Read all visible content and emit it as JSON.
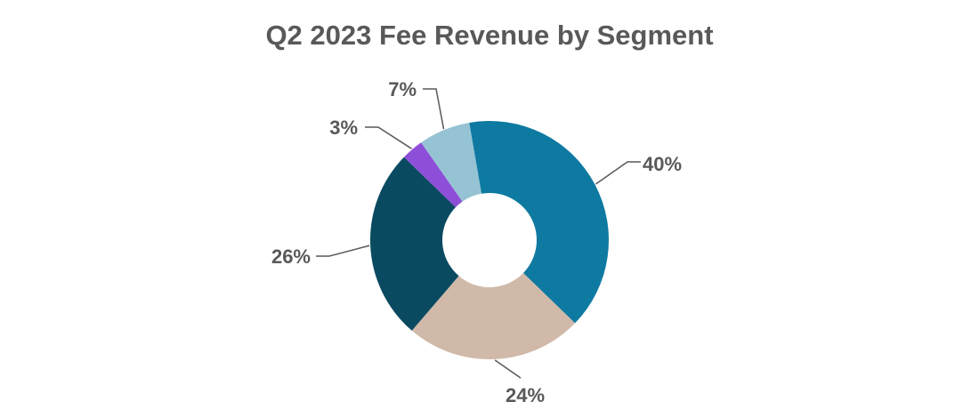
{
  "chart_data": {
    "type": "pie",
    "variant": "donut",
    "title": "Q2 2023 Fee Revenue by Segment",
    "values": [
      40,
      24,
      26,
      3,
      7
    ],
    "data_labels": [
      "40%",
      "24%",
      "26%",
      "3%",
      "7%"
    ],
    "colors": [
      "#0e7aa2",
      "#d0b9a8",
      "#0a4a61",
      "#8e4fd8",
      "#96c3d4"
    ],
    "legend": "none"
  }
}
